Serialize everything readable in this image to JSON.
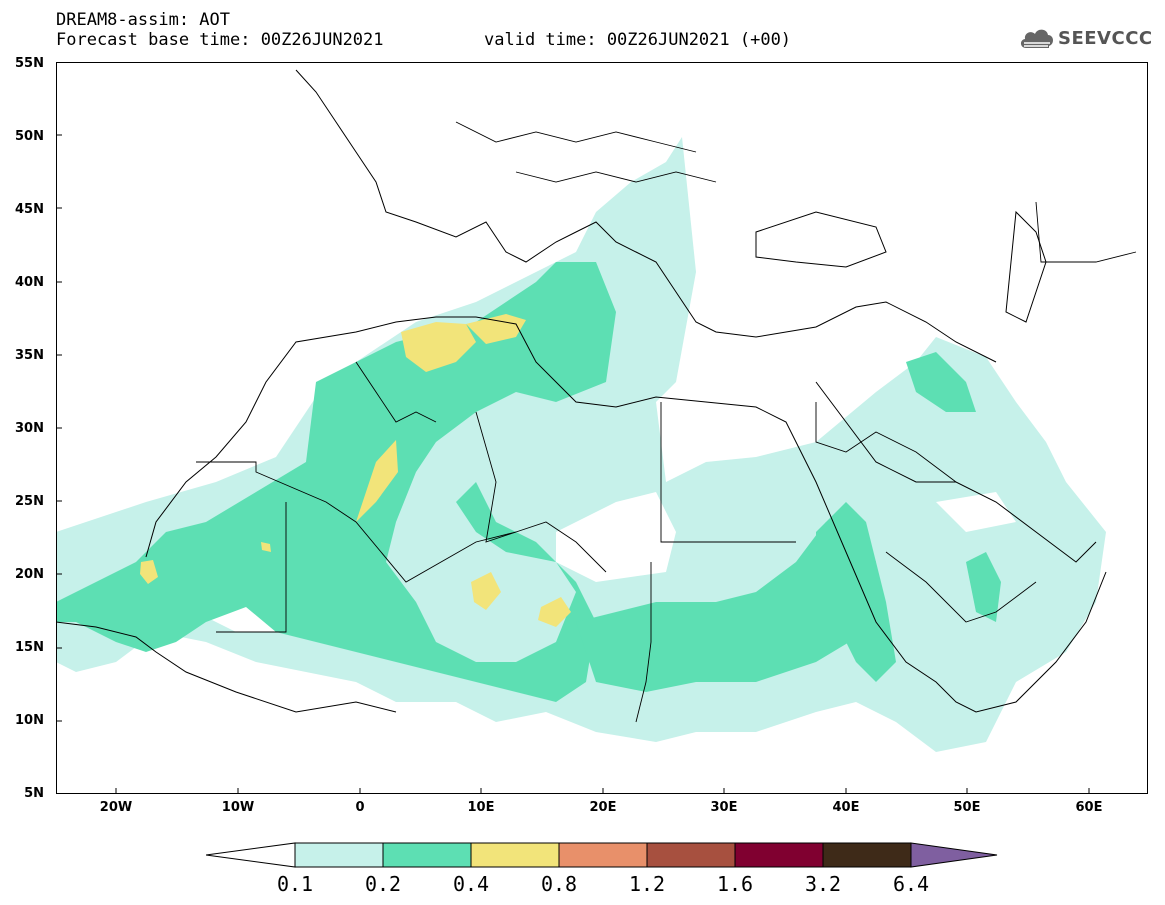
{
  "header": {
    "title": "DREAM8-assim: AOT",
    "forecast": "Forecast base time: 00Z26JUN2021",
    "valid": "valid time: 00Z26JUN2021 (+00)"
  },
  "logo": {
    "text": "SEEVCCC",
    "icon": "cloud-icon"
  },
  "map": {
    "lat_labels": [
      "55N",
      "50N",
      "45N",
      "40N",
      "35N",
      "30N",
      "25N",
      "20N",
      "15N",
      "10N",
      "5N"
    ],
    "lon_labels": [
      "20W",
      "10W",
      "0",
      "10E",
      "20E",
      "30E",
      "40E",
      "50E",
      "60E"
    ],
    "lon_range": [
      -25,
      65
    ],
    "lat_range": [
      5,
      55
    ],
    "projection": "plate-carree"
  },
  "legend": {
    "labels": [
      "0.1",
      "0.2",
      "0.4",
      "0.8",
      "1.2",
      "1.6",
      "3.2",
      "6.4"
    ],
    "colors": [
      "#ffffff",
      "#c6f1ea",
      "#5ddfb3",
      "#f2e47a",
      "#e8906a",
      "#a7503f",
      "#800030",
      "#3e2a18",
      "#7f5fa0"
    ]
  }
}
